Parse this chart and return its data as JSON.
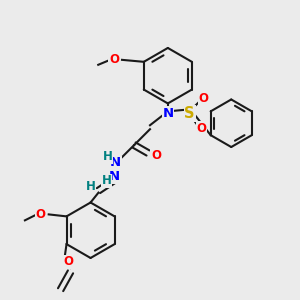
{
  "bg_color": "#ebebeb",
  "bond_color": "#1a1a1a",
  "bond_width": 1.5,
  "atom_colors": {
    "N": "#0000ff",
    "O": "#ff0000",
    "S": "#ccaa00",
    "H": "#008080",
    "C": "#1a1a1a"
  },
  "font_size": 8.5,
  "fig_size": [
    3.0,
    3.0
  ],
  "dpi": 100
}
